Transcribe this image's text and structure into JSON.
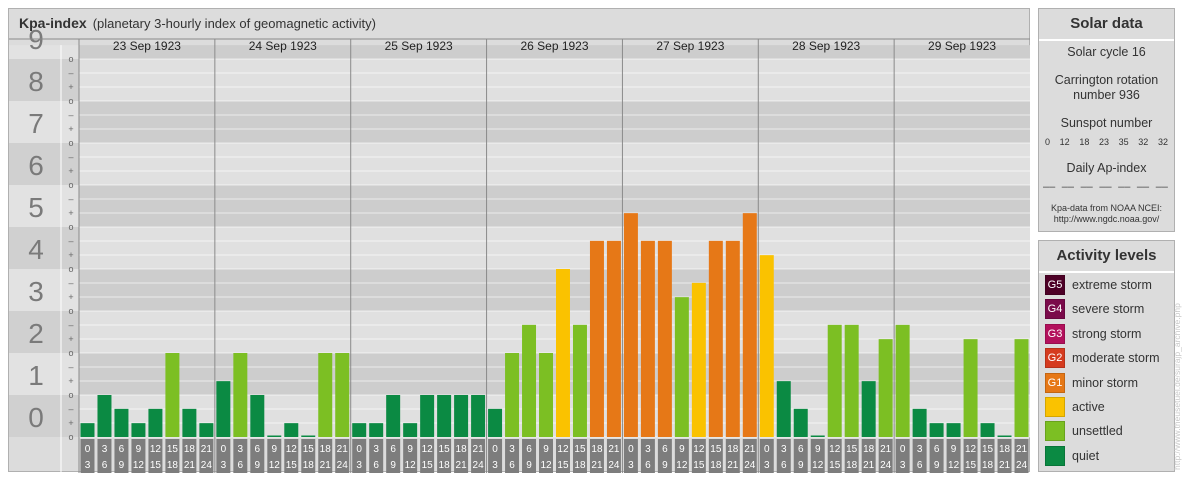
{
  "title": "Kpa-index",
  "subtitle": "(planetary 3-hourly index of geomagnetic activity)",
  "solar": {
    "heading": "Solar data",
    "cycle": "Solar cycle 16",
    "carrington": "Carrington rotation number 936",
    "sunspot_label": "Sunspot number",
    "sunspot_values": [
      "0",
      "12",
      "18",
      "23",
      "35",
      "32",
      "32"
    ],
    "ap_label": "Daily Ap-index",
    "ap_values": [
      "––",
      "––",
      "––",
      "––",
      "––",
      "––",
      "––"
    ],
    "source": "Kpa-data from NOAA NCEI:",
    "source_url": "http://www.ngdc.noaa.gov/"
  },
  "activity": {
    "heading": "Activity levels",
    "levels": [
      {
        "code": "G5",
        "label": "extreme storm",
        "color": "#4d0026"
      },
      {
        "code": "G4",
        "label": "severe storm",
        "color": "#7a0a4a"
      },
      {
        "code": "G3",
        "label": "strong storm",
        "color": "#b3105c"
      },
      {
        "code": "G2",
        "label": "moderate storm",
        "color": "#d53b1f"
      },
      {
        "code": "G1",
        "label": "minor storm",
        "color": "#e67817"
      },
      {
        "code": "",
        "label": "active",
        "color": "#fac200"
      },
      {
        "code": "",
        "label": "unsettled",
        "color": "#7cbf23"
      },
      {
        "code": "",
        "label": "quiet",
        "color": "#0b8a43"
      }
    ]
  },
  "credit": "http://www.theusetuel.de/surajp_archive.php",
  "chart_data": {
    "type": "bar",
    "days": [
      "23 Sep 1923",
      "24 Sep 1923",
      "25 Sep 1923",
      "26 Sep 1923",
      "27 Sep 1923",
      "28 Sep 1923",
      "29 Sep 1923"
    ],
    "hours_start": [
      "0",
      "3",
      "6",
      "9",
      "12",
      "15",
      "18",
      "21"
    ],
    "hours_end": [
      "3",
      "6",
      "9",
      "12",
      "15",
      "18",
      "21",
      "24"
    ],
    "y_ticks": [
      "0",
      "1",
      "2",
      "3",
      "4",
      "5",
      "6",
      "7",
      "8",
      "9"
    ],
    "sub_ticks": [
      "o",
      "+",
      "–"
    ],
    "ylim": [
      0,
      9.33
    ],
    "values": [
      [
        0.33,
        1.0,
        0.67,
        0.33,
        0.67,
        2.0,
        0.67,
        0.33
      ],
      [
        1.33,
        2.0,
        1.0,
        0.0,
        0.33,
        0.0,
        2.0,
        2.0
      ],
      [
        0.33,
        0.33,
        1.0,
        0.33,
        1.0,
        1.0,
        1.0,
        1.0
      ],
      [
        0.67,
        2.0,
        2.67,
        2.0,
        4.0,
        2.67,
        4.67,
        4.67
      ],
      [
        5.33,
        4.67,
        4.67,
        3.33,
        3.67,
        4.67,
        4.67,
        5.33
      ],
      [
        4.33,
        1.33,
        0.67,
        0.0,
        2.67,
        2.67,
        1.33,
        2.33
      ],
      [
        2.67,
        0.67,
        0.33,
        0.33,
        2.33,
        0.33,
        0.0,
        2.33
      ]
    ]
  }
}
